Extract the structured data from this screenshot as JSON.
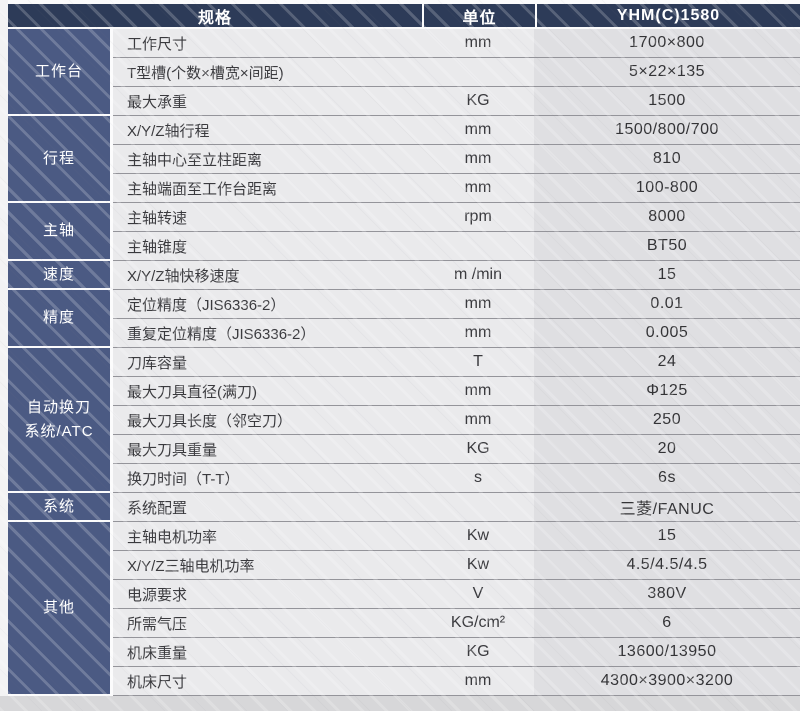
{
  "header": {
    "spec": "规格",
    "unit": "单位",
    "model": "YHM(C)1580"
  },
  "colors": {
    "header_bg": "#2d3b58",
    "group_bg": "#4b5a83",
    "row_bg": "#eaeaec",
    "value_column_bg": "#dfdfe2"
  },
  "groups": [
    {
      "label": "工作台",
      "rows": [
        {
          "name": "工作尺寸",
          "unit": "mm",
          "value": "1700×800"
        },
        {
          "name": "T型槽(个数×槽宽×间距)",
          "unit": "",
          "value": "5×22×135"
        },
        {
          "name": "最大承重",
          "unit": "KG",
          "value": "1500"
        }
      ]
    },
    {
      "label": "行程",
      "rows": [
        {
          "name": "X/Y/Z轴行程",
          "unit": "mm",
          "value": "1500/800/700"
        },
        {
          "name": "主轴中心至立柱距离",
          "unit": "mm",
          "value": "810"
        },
        {
          "name": "主轴端面至工作台距离",
          "unit": "mm",
          "value": "100-800"
        }
      ]
    },
    {
      "label": "主轴",
      "rows": [
        {
          "name": "主轴转速",
          "unit": "rpm",
          "value": "8000"
        },
        {
          "name": "主轴锥度",
          "unit": "",
          "value": "BT50"
        }
      ]
    },
    {
      "label": "速度",
      "rows": [
        {
          "name": "X/Y/Z轴快移速度",
          "unit": "m /min",
          "value": "15"
        }
      ]
    },
    {
      "label": "精度",
      "rows": [
        {
          "name": "定位精度（JIS6336-2）",
          "unit": "mm",
          "value": "0.01"
        },
        {
          "name": "重复定位精度（JIS6336-2）",
          "unit": "mm",
          "value": "0.005"
        }
      ]
    },
    {
      "label": "自动换刀\n系统/ATC",
      "rows": [
        {
          "name": "刀库容量",
          "unit": "T",
          "value": "24"
        },
        {
          "name": "最大刀具直径(满刀)",
          "unit": "mm",
          "value": "Φ125"
        },
        {
          "name": "最大刀具长度（邻空刀）",
          "unit": "mm",
          "value": "250"
        },
        {
          "name": "最大刀具重量",
          "unit": "KG",
          "value": "20"
        },
        {
          "name": "换刀时间（T-T）",
          "unit": "s",
          "value": "6s"
        }
      ]
    },
    {
      "label": "系统",
      "rows": [
        {
          "name": "系统配置",
          "unit": "",
          "value": "三菱/FANUC"
        }
      ]
    },
    {
      "label": "其他",
      "rows": [
        {
          "name": "主轴电机功率",
          "unit": "Kw",
          "value": "15"
        },
        {
          "name": "X/Y/Z三轴电机功率",
          "unit": "Kw",
          "value": "4.5/4.5/4.5"
        },
        {
          "name": "电源要求",
          "unit": "V",
          "value": "380V"
        },
        {
          "name": "所需气压",
          "unit": "KG/cm²",
          "value": "6"
        },
        {
          "name": "机床重量",
          "unit": "KG",
          "value": "13600/13950"
        },
        {
          "name": "机床尺寸",
          "unit": "mm",
          "value": "4300×3900×3200"
        }
      ]
    }
  ]
}
